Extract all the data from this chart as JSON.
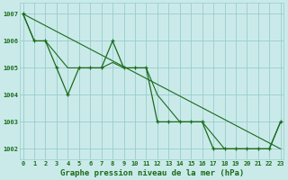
{
  "line1_x": [
    0,
    1,
    2,
    3,
    4,
    5,
    6,
    7,
    8,
    9,
    10,
    11,
    12,
    13,
    14,
    15,
    16,
    17,
    18,
    19,
    20,
    21,
    22,
    23
  ],
  "line1_y": [
    1007,
    1006,
    1006,
    1005,
    1004,
    1005,
    1005,
    1005,
    1006,
    1005,
    1005,
    1005,
    1003,
    1003,
    1003,
    1003,
    1003,
    1002,
    1002,
    1002,
    1002,
    1002,
    1002,
    1003
  ],
  "line2_x": [
    0,
    1,
    2,
    3,
    4,
    5,
    6,
    7,
    8,
    9,
    10,
    11,
    12,
    13,
    14,
    15,
    16,
    17,
    18,
    19,
    20,
    21,
    22,
    23
  ],
  "line2_y": [
    1007,
    1006,
    1006,
    1005.5,
    1005,
    1005,
    1005,
    1005,
    1005.2,
    1005,
    1005,
    1005,
    1004,
    1003.5,
    1003,
    1003,
    1003,
    1002.5,
    1002,
    1002,
    1002,
    1002,
    1002,
    1003
  ],
  "line3_x": [
    0,
    23
  ],
  "line3_y": [
    1007,
    1002
  ],
  "line_color": "#1a6b1a",
  "bg_color": "#caeaea",
  "grid_color": "#99cccc",
  "xlabel": "Graphe pression niveau de la mer (hPa)",
  "xticks": [
    0,
    1,
    2,
    3,
    4,
    5,
    6,
    7,
    8,
    9,
    10,
    11,
    12,
    13,
    14,
    15,
    16,
    17,
    18,
    19,
    20,
    21,
    22,
    23
  ],
  "ytick_values": [
    1002,
    1003,
    1004,
    1005,
    1006,
    1007
  ],
  "ylim": [
    1001.6,
    1007.4
  ],
  "xlim": [
    -0.3,
    23.3
  ],
  "tick_fontsize": 5.0,
  "xlabel_fontsize": 6.5
}
